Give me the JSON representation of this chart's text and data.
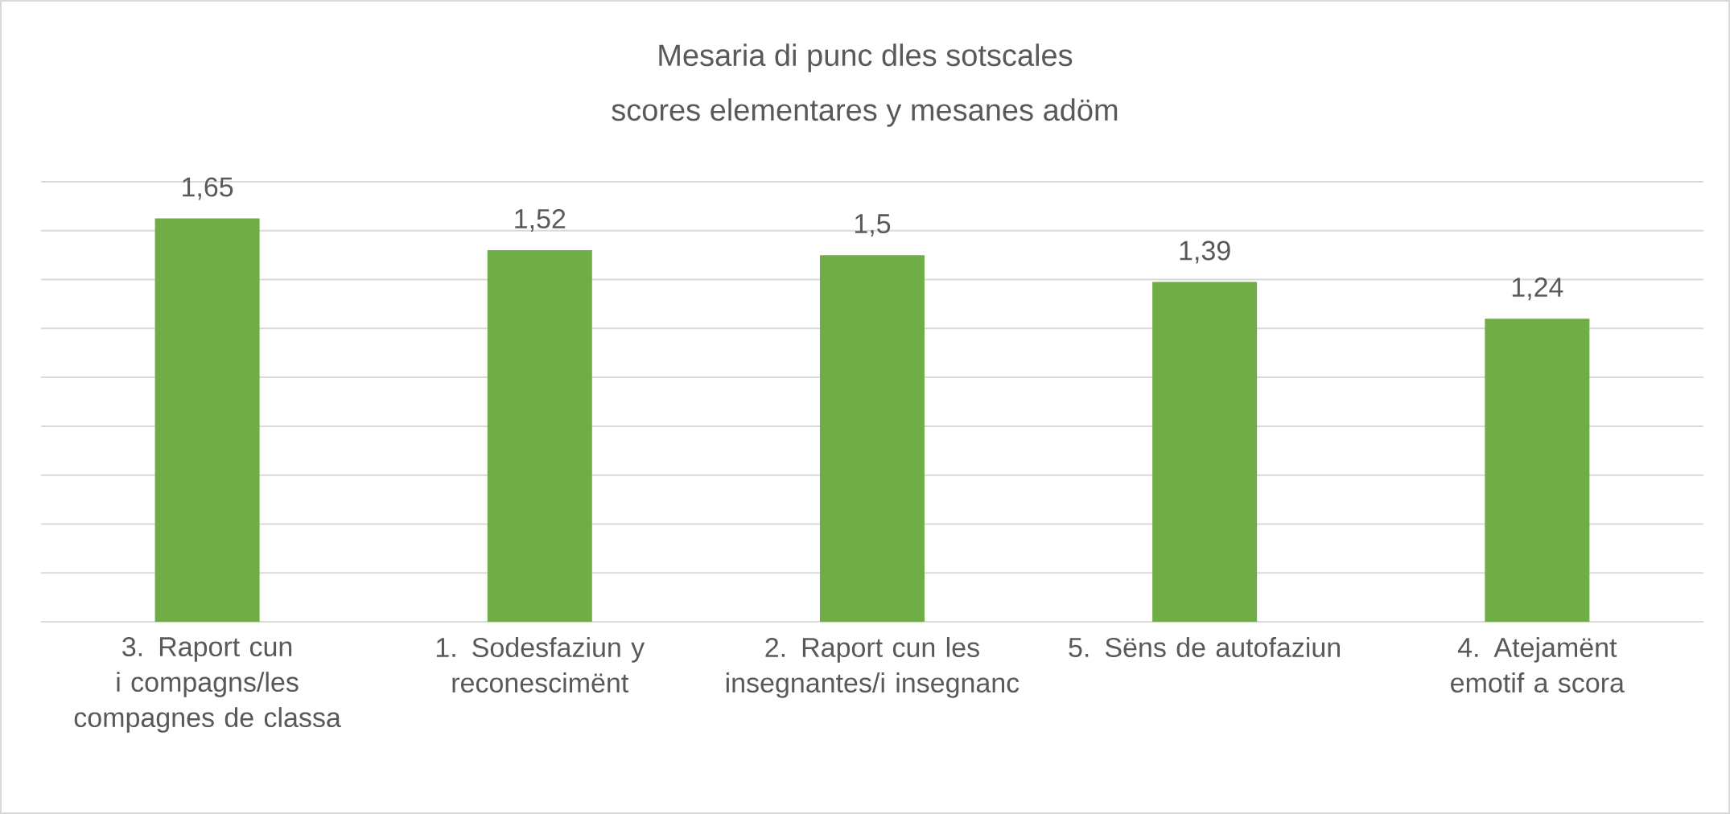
{
  "chart_data": {
    "type": "bar",
    "title": "Mesaria di punc dles sotscales",
    "subtitle": "scores elementares y mesanes adöm",
    "categories": [
      "3. Raport cun i compagns/les compagnes de classa",
      "1. Sodesfaziun y reconescimënt",
      "2. Raport cun les insegnantes/i insegnanc",
      "5. Sëns de autofaziun",
      "4. Atejamënt emotif a scora"
    ],
    "values": [
      1.65,
      1.52,
      1.5,
      1.39,
      1.24
    ],
    "value_labels": [
      "1,65",
      "1,52",
      "1,5",
      "1,39",
      "1,24"
    ],
    "color": "#70ad47",
    "ylim": [
      0,
      1.8
    ],
    "yticks": [
      {
        "value": 0,
        "label": null
      },
      {
        "value": 0.2,
        "label": null
      },
      {
        "value": 0.4,
        "label": null
      },
      {
        "value": 0.6,
        "label": null
      },
      {
        "value": 0.8,
        "label": null
      },
      {
        "value": 1.0,
        "label": null
      },
      {
        "value": 1.2,
        "label": null
      },
      {
        "value": 1.4,
        "label": null
      },
      {
        "value": 1.6,
        "label": null
      },
      {
        "value": 1.8,
        "label": null
      }
    ],
    "grid": "y",
    "tick_labels": "x"
  }
}
